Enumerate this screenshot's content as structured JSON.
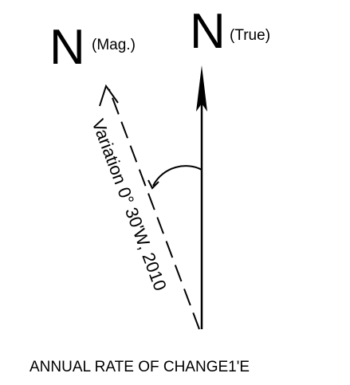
{
  "magnetic_north": {
    "symbol": "N",
    "suffix": "(Mag.)"
  },
  "true_north": {
    "symbol": "N",
    "suffix": "(True)"
  },
  "variation_label": "Variation 0° 30'W, 2010",
  "annual_rate_label": "ANNUAL RATE OF CHANGE1'E"
}
